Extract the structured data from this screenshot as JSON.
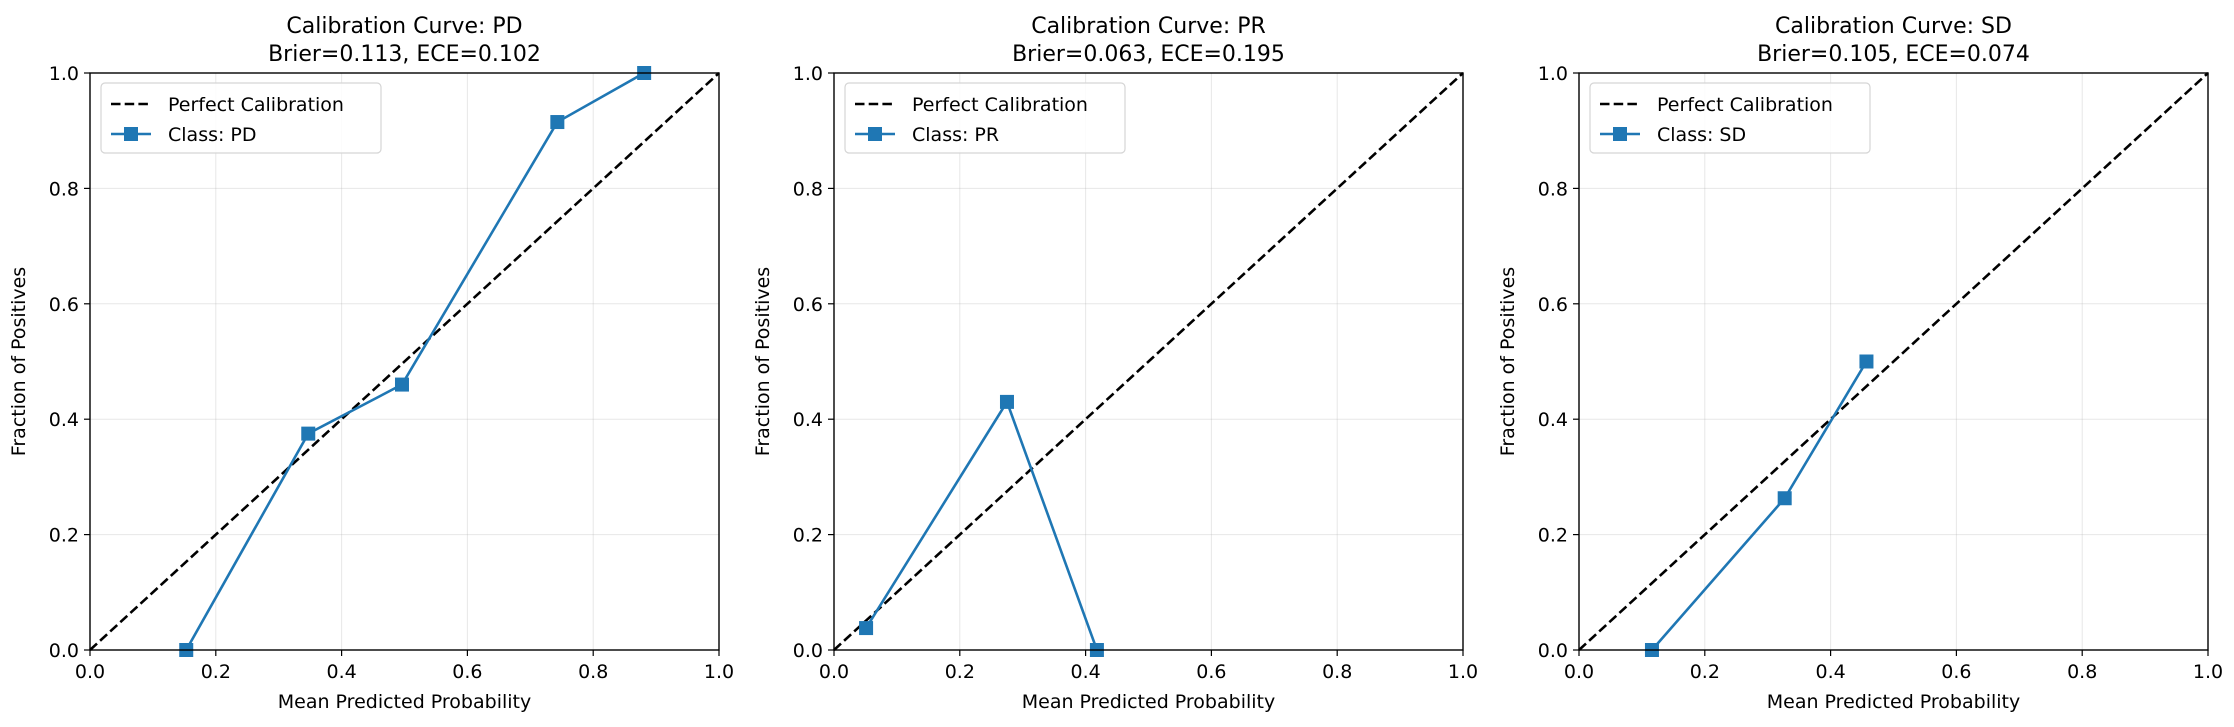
{
  "chart_data": [
    {
      "type": "line",
      "title": "Calibration Curve: PD",
      "subtitle": "Brier=0.113, ECE=0.102",
      "xlabel": "Mean Predicted Probability",
      "ylabel": "Fraction of Positives",
      "xlim": [
        0,
        1
      ],
      "ylim": [
        0,
        1
      ],
      "xticks": [
        "0.0",
        "0.2",
        "0.4",
        "0.6",
        "0.8",
        "1.0"
      ],
      "yticks": [
        "0.0",
        "0.2",
        "0.4",
        "0.6",
        "0.8",
        "1.0"
      ],
      "grid": true,
      "legend_position": "top-left",
      "series": [
        {
          "name": "Perfect Calibration",
          "style": "dashed",
          "color": "#000000",
          "x": [
            0,
            1
          ],
          "y": [
            0,
            1
          ]
        },
        {
          "name": "Class: PD",
          "style": "solid-square-markers",
          "color": "#1f77b4",
          "x": [
            0.153,
            0.347,
            0.496,
            0.743,
            0.881
          ],
          "y": [
            0.0,
            0.375,
            0.46,
            0.915,
            1.0
          ]
        }
      ]
    },
    {
      "type": "line",
      "title": "Calibration Curve: PR",
      "subtitle": "Brier=0.063, ECE=0.195",
      "xlabel": "Mean Predicted Probability",
      "ylabel": "Fraction of Positives",
      "xlim": [
        0,
        1
      ],
      "ylim": [
        0,
        1
      ],
      "xticks": [
        "0.0",
        "0.2",
        "0.4",
        "0.6",
        "0.8",
        "1.0"
      ],
      "yticks": [
        "0.0",
        "0.2",
        "0.4",
        "0.6",
        "0.8",
        "1.0"
      ],
      "grid": true,
      "legend_position": "top-left",
      "series": [
        {
          "name": "Perfect Calibration",
          "style": "dashed",
          "color": "#000000",
          "x": [
            0,
            1
          ],
          "y": [
            0,
            1
          ]
        },
        {
          "name": "Class: PR",
          "style": "solid-square-markers",
          "color": "#1f77b4",
          "x": [
            0.051,
            0.275,
            0.418
          ],
          "y": [
            0.038,
            0.43,
            0.0
          ]
        }
      ]
    },
    {
      "type": "line",
      "title": "Calibration Curve: SD",
      "subtitle": "Brier=0.105, ECE=0.074",
      "xlabel": "Mean Predicted Probability",
      "ylabel": "Fraction of Positives",
      "xlim": [
        0,
        1
      ],
      "ylim": [
        0,
        1
      ],
      "xticks": [
        "0.0",
        "0.2",
        "0.4",
        "0.6",
        "0.8",
        "1.0"
      ],
      "yticks": [
        "0.0",
        "0.2",
        "0.4",
        "0.6",
        "0.8",
        "1.0"
      ],
      "grid": true,
      "legend_position": "top-left",
      "series": [
        {
          "name": "Perfect Calibration",
          "style": "dashed",
          "color": "#000000",
          "x": [
            0,
            1
          ],
          "y": [
            0,
            1
          ]
        },
        {
          "name": "Class: SD",
          "style": "solid-square-markers",
          "color": "#1f77b4",
          "x": [
            0.116,
            0.327,
            0.457
          ],
          "y": [
            0.0,
            0.263,
            0.5
          ]
        }
      ]
    }
  ]
}
